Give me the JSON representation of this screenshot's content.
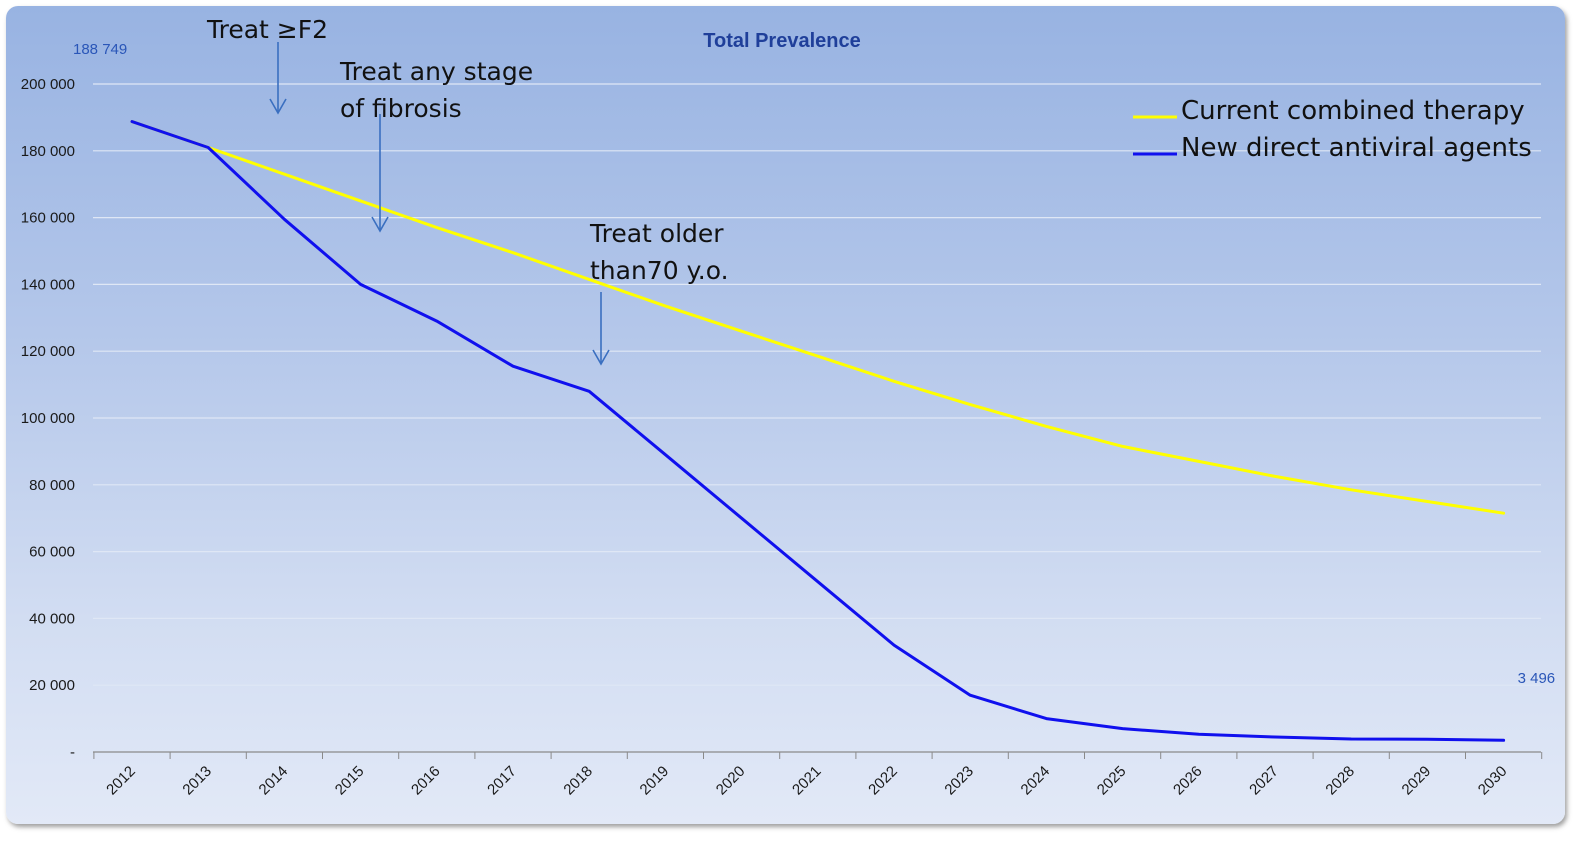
{
  "chart_data": {
    "type": "line",
    "title": "Total Prevalence",
    "xlabel": "",
    "ylabel": "",
    "ylim": [
      0,
      200000
    ],
    "y_ticks": [
      "-",
      "20 000",
      "40 000",
      "60 000",
      "80 000",
      "100 000",
      "120 000",
      "140 000",
      "160 000",
      "180 000",
      "200 000"
    ],
    "y_tick_values": [
      0,
      20000,
      40000,
      60000,
      80000,
      100000,
      120000,
      140000,
      160000,
      180000,
      200000
    ],
    "categories": [
      "2012",
      "2013",
      "2014",
      "2015",
      "2016",
      "2017",
      "2018",
      "2019",
      "2020",
      "2021",
      "2022",
      "2023",
      "2024",
      "2025",
      "2026",
      "2027",
      "2028",
      "2029",
      "2030"
    ],
    "grid": true,
    "legend_position": "top-right",
    "series": [
      {
        "name": "Current combined therapy",
        "color": "#ffff00",
        "values": [
          188749,
          181000,
          173000,
          165000,
          157000,
          149500,
          141500,
          133500,
          126000,
          118500,
          111000,
          104000,
          97500,
          91500,
          87000,
          82500,
          78500,
          75000,
          71500
        ]
      },
      {
        "name": "New direct antiviral agents",
        "color": "#1010ee",
        "values": [
          188749,
          181000,
          159500,
          140000,
          129000,
          115500,
          108000,
          89000,
          70000,
          51000,
          32000,
          17000,
          10000,
          7000,
          5300,
          4500,
          3900,
          3800,
          3496
        ]
      }
    ],
    "data_labels": [
      {
        "text": "188 749",
        "category": "2012",
        "series": "New direct antiviral agents"
      },
      {
        "text": "3 496",
        "category": "2030",
        "series": "New direct antiviral agents"
      }
    ],
    "annotations": [
      {
        "lines": [
          "Treat ≥F2"
        ],
        "x_value": 2014.4,
        "arrow_tip_value": 190000
      },
      {
        "lines": [
          "Treat any stage",
          "of fibrosis"
        ],
        "x_value": 2015.75,
        "arrow_tip_value": 155000
      },
      {
        "lines": [
          "Treat older",
          "than70 y.o."
        ],
        "x_value": 2018.3,
        "arrow_tip_value": 116000
      }
    ]
  }
}
